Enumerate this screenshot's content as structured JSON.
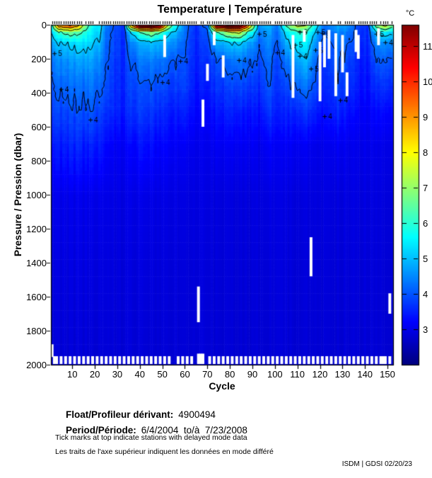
{
  "title": "Temperature | Température",
  "footer": {
    "float_label": "Float/Profileur dérivant:",
    "float_value": "4900494",
    "period_label": "Period/Période:",
    "period_value": "6/4/2004  to/à  7/23/2008",
    "note_en": "Tick marks at top indicate stations with delayed mode data",
    "note_fr": "Les traits de l'axe supérieur indiquent les données en mode différé",
    "credit": "ISDM | GDSI 02/20/23"
  },
  "chart_data": {
    "type": "heatmap",
    "title": "Temperature | Température",
    "xlabel": "Cycle",
    "ylabel": "Pressure / Pression (dbar)",
    "x_range": [
      1,
      152
    ],
    "y_range": [
      0,
      2000
    ],
    "x_ticks": [
      10,
      20,
      30,
      40,
      50,
      60,
      70,
      80,
      90,
      100,
      110,
      120,
      130,
      140,
      150
    ],
    "y_ticks": [
      0,
      200,
      400,
      600,
      800,
      1000,
      1200,
      1400,
      1600,
      1800,
      2000
    ],
    "colorbar": {
      "unit": "°C",
      "ticks": [
        3,
        4,
        5,
        6,
        7,
        8,
        9,
        10,
        11
      ],
      "domain": [
        2.0,
        11.6
      ],
      "colormap": "jet"
    },
    "contour_levels": [
      4,
      5,
      6,
      7,
      8,
      9,
      10,
      11
    ],
    "pressure_nodes": [
      0,
      40,
      100,
      200,
      350,
      500,
      700,
      1000,
      1400,
      2000
    ],
    "profiles": [
      {
        "cycle": 1,
        "temps": [
          6.0,
          5.2,
          4.8,
          4.3,
          4.0,
          3.8,
          3.4,
          3.0,
          2.9,
          2.8
        ]
      },
      {
        "cycle": 4,
        "temps": [
          8.8,
          6.0,
          5.0,
          4.5,
          4.1,
          3.8,
          3.4,
          3.0,
          2.9,
          2.8
        ]
      },
      {
        "cycle": 9,
        "temps": [
          9.3,
          6.5,
          5.2,
          4.6,
          4.2,
          3.9,
          3.5,
          3.0,
          2.9,
          2.8
        ]
      },
      {
        "cycle": 13,
        "temps": [
          8.2,
          6.2,
          5.3,
          4.7,
          4.2,
          3.9,
          3.5,
          3.0,
          2.9,
          2.8
        ]
      },
      {
        "cycle": 16,
        "temps": [
          6.5,
          5.8,
          5.3,
          4.7,
          4.2,
          3.9,
          3.4,
          3.0,
          2.9,
          2.8
        ]
      },
      {
        "cycle": 19,
        "temps": [
          5.6,
          5.4,
          5.1,
          4.7,
          4.3,
          4.0,
          3.5,
          3.0,
          2.9,
          2.8
        ]
      },
      {
        "cycle": 22,
        "temps": [
          5.4,
          5.2,
          4.9,
          4.5,
          4.1,
          3.8,
          3.4,
          2.98,
          2.88,
          2.8
        ]
      },
      {
        "cycle": 25,
        "temps": [
          4.3,
          4.2,
          4.1,
          4.0,
          3.9,
          3.6,
          3.2,
          2.95,
          2.87,
          2.8
        ]
      },
      {
        "cycle": 29,
        "temps": [
          3.9,
          3.85,
          3.8,
          3.7,
          3.6,
          3.5,
          3.1,
          2.93,
          2.86,
          2.8
        ]
      },
      {
        "cycle": 33,
        "temps": [
          3.7,
          3.65,
          3.6,
          3.55,
          3.5,
          3.4,
          3.1,
          2.92,
          2.85,
          2.8
        ]
      },
      {
        "cycle": 36,
        "temps": [
          8.0,
          5.0,
          4.4,
          4.0,
          3.8,
          3.6,
          3.2,
          2.95,
          2.86,
          2.8
        ]
      },
      {
        "cycle": 40,
        "temps": [
          11.0,
          6.0,
          4.8,
          4.3,
          3.9,
          3.7,
          3.3,
          2.97,
          2.88,
          2.8
        ]
      },
      {
        "cycle": 45,
        "temps": [
          11.5,
          6.8,
          5.0,
          4.4,
          4.0,
          3.7,
          3.3,
          2.97,
          2.88,
          2.8
        ]
      },
      {
        "cycle": 49,
        "temps": [
          10.5,
          6.2,
          4.9,
          4.3,
          3.9,
          3.6,
          3.2,
          2.95,
          2.87,
          2.8
        ]
      },
      {
        "cycle": 52,
        "temps": [
          7.5,
          5.4,
          4.7,
          4.2,
          3.8,
          3.5,
          3.2,
          2.94,
          2.86,
          2.8
        ]
      },
      {
        "cycle": 55,
        "temps": [
          5.8,
          5.0,
          4.5,
          4.0,
          3.7,
          3.4,
          3.1,
          2.93,
          2.85,
          2.8
        ]
      },
      {
        "cycle": 60,
        "temps": [
          4.3,
          4.2,
          4.1,
          3.95,
          3.8,
          3.5,
          3.1,
          2.92,
          2.85,
          2.8
        ]
      },
      {
        "cycle": 65,
        "temps": [
          3.6,
          3.55,
          3.5,
          3.45,
          3.35,
          3.2,
          3.0,
          2.9,
          2.84,
          2.8
        ]
      },
      {
        "cycle": 70,
        "temps": [
          4.2,
          4.0,
          3.8,
          3.6,
          3.4,
          3.2,
          3.0,
          2.9,
          2.84,
          2.8
        ]
      },
      {
        "cycle": 74,
        "temps": [
          10.5,
          6.0,
          4.8,
          4.0,
          3.7,
          3.4,
          3.1,
          2.9,
          2.85,
          2.8
        ]
      },
      {
        "cycle": 79,
        "temps": [
          11.5,
          7.0,
          5.0,
          4.2,
          3.8,
          3.5,
          3.1,
          2.9,
          2.85,
          2.8
        ]
      },
      {
        "cycle": 84,
        "temps": [
          11.5,
          7.5,
          5.2,
          4.4,
          3.9,
          3.5,
          3.1,
          2.9,
          2.85,
          2.8
        ]
      },
      {
        "cycle": 88,
        "temps": [
          9.0,
          6.0,
          4.8,
          4.2,
          3.8,
          3.4,
          3.1,
          2.9,
          2.85,
          2.8
        ]
      },
      {
        "cycle": 90,
        "temps": [
          7.0,
          5.5,
          4.6,
          4.1,
          3.7,
          3.4,
          3.1,
          2.9,
          2.85,
          2.8
        ]
      },
      {
        "cycle": 93,
        "temps": [
          4.6,
          4.3,
          4.1,
          3.9,
          3.6,
          3.3,
          3.0,
          2.9,
          2.84,
          2.8
        ]
      },
      {
        "cycle": 97,
        "temps": [
          5.0,
          4.8,
          4.6,
          4.3,
          4.1,
          3.8,
          3.2,
          2.95,
          2.87,
          2.8
        ]
      },
      {
        "cycle": 101,
        "temps": [
          4.2,
          4.05,
          3.9,
          3.7,
          3.55,
          3.35,
          3.05,
          2.9,
          2.85,
          2.8
        ]
      },
      {
        "cycle": 106,
        "temps": [
          6.5,
          5.5,
          5.0,
          4.4,
          3.9,
          3.5,
          3.1,
          2.9,
          2.85,
          2.8
        ]
      },
      {
        "cycle": 110,
        "temps": [
          7.5,
          6.0,
          5.5,
          4.8,
          4.2,
          3.6,
          3.1,
          2.9,
          2.85,
          2.8
        ]
      },
      {
        "cycle": 114,
        "temps": [
          7.0,
          6.0,
          5.5,
          5.0,
          4.3,
          3.7,
          3.1,
          2.9,
          2.85,
          2.8
        ]
      },
      {
        "cycle": 118,
        "temps": [
          5.5,
          5.0,
          4.6,
          4.2,
          3.9,
          3.5,
          3.0,
          2.9,
          2.85,
          2.8
        ]
      },
      {
        "cycle": 122,
        "temps": [
          4.2,
          4.0,
          3.8,
          3.6,
          3.5,
          3.3,
          3.0,
          2.9,
          2.84,
          2.8
        ]
      },
      {
        "cycle": 128,
        "temps": [
          4.8,
          4.5,
          4.3,
          4.1,
          3.9,
          3.6,
          3.1,
          2.9,
          2.85,
          2.8
        ]
      },
      {
        "cycle": 133,
        "temps": [
          4.5,
          4.2,
          4.0,
          3.8,
          3.6,
          3.3,
          3.0,
          2.9,
          2.84,
          2.8
        ]
      },
      {
        "cycle": 137,
        "temps": [
          3.8,
          3.7,
          3.6,
          3.5,
          3.4,
          3.2,
          3.0,
          2.9,
          2.84,
          2.8
        ]
      },
      {
        "cycle": 141,
        "temps": [
          3.6,
          3.55,
          3.5,
          3.4,
          3.3,
          3.1,
          3.0,
          2.89,
          2.84,
          2.8
        ]
      },
      {
        "cycle": 145,
        "temps": [
          6.5,
          5.0,
          4.4,
          4.0,
          3.6,
          3.3,
          3.0,
          2.9,
          2.84,
          2.8
        ]
      },
      {
        "cycle": 149,
        "temps": [
          7.5,
          5.5,
          4.6,
          4.1,
          3.7,
          3.3,
          3.0,
          2.9,
          2.84,
          2.8
        ]
      },
      {
        "cycle": 152,
        "temps": [
          6.5,
          5.2,
          4.5,
          4.0,
          3.6,
          3.3,
          3.0,
          2.9,
          2.84,
          2.8
        ]
      }
    ],
    "contour_labels": [
      {
        "t": "5",
        "c": 4,
        "p": 170
      },
      {
        "t": "4",
        "c": 7,
        "p": 380
      },
      {
        "t": "4",
        "c": 20,
        "p": 560
      },
      {
        "t": "4",
        "c": 52,
        "p": 340
      },
      {
        "t": "4",
        "c": 60,
        "p": 215
      },
      {
        "t": "4",
        "c": 86,
        "p": 210
      },
      {
        "t": "5",
        "c": 95,
        "p": 55
      },
      {
        "t": "4",
        "c": 103,
        "p": 165
      },
      {
        "t": "5",
        "c": 118,
        "p": 260
      },
      {
        "t": "5",
        "c": 120,
        "p": 150
      },
      {
        "t": "5",
        "c": 121,
        "p": 45
      },
      {
        "t": "6",
        "c": 123,
        "p": 50
      },
      {
        "t": "4",
        "c": 131,
        "p": 445
      },
      {
        "t": "4",
        "c": 124,
        "p": 540
      },
      {
        "t": "4",
        "c": 151,
        "p": 105
      },
      {
        "t": "5",
        "c": 147,
        "p": 55
      },
      {
        "t": "6",
        "c": 113,
        "p": 45
      },
      {
        "t": "5",
        "c": 111,
        "p": 120
      },
      {
        "t": "4",
        "c": 113,
        "p": 185
      }
    ],
    "missing_segments": [
      {
        "c": 1,
        "p0": 1880,
        "p1": 1955
      },
      {
        "c": 51,
        "p0": 60,
        "p1": 190
      },
      {
        "c": 66,
        "p0": 1540,
        "p1": 1750
      },
      {
        "c": 68,
        "p0": 440,
        "p1": 600
      },
      {
        "c": 70,
        "p0": 230,
        "p1": 330
      },
      {
        "c": 73,
        "p0": 40,
        "p1": 120
      },
      {
        "c": 77,
        "p0": 180,
        "p1": 310
      },
      {
        "c": 108,
        "p0": 60,
        "p1": 430
      },
      {
        "c": 113,
        "p0": 30,
        "p1": 100
      },
      {
        "c": 116,
        "p0": 1250,
        "p1": 1480
      },
      {
        "c": 120,
        "p0": 100,
        "p1": 450
      },
      {
        "c": 122,
        "p0": 60,
        "p1": 250
      },
      {
        "c": 124,
        "p0": 30,
        "p1": 200
      },
      {
        "c": 127,
        "p0": 50,
        "p1": 420
      },
      {
        "c": 130,
        "p0": 60,
        "p1": 280
      },
      {
        "c": 132,
        "p0": 280,
        "p1": 420
      },
      {
        "c": 136,
        "p0": 30,
        "p1": 160
      },
      {
        "c": 137,
        "p0": 60,
        "p1": 200
      },
      {
        "c": 146,
        "p0": 20,
        "p1": 120
      },
      {
        "c": 151,
        "p0": 1580,
        "p1": 1700
      }
    ],
    "bottom_gap_cycles": [
      2,
      3,
      5,
      7,
      9,
      11,
      13,
      15,
      17,
      19,
      21,
      23,
      25,
      27,
      29,
      31,
      33,
      35,
      37,
      39,
      41,
      43,
      45,
      47,
      49,
      51,
      53,
      57,
      59,
      61,
      63,
      66,
      67,
      68,
      71,
      73,
      75,
      77,
      79,
      81,
      83,
      85,
      87,
      89,
      91,
      93,
      95,
      97,
      99,
      101,
      103,
      105,
      107,
      109,
      111,
      113,
      115,
      117,
      119,
      121,
      123,
      125,
      127,
      129,
      131,
      133,
      135,
      137,
      139,
      141,
      143,
      145,
      147,
      148,
      149,
      151
    ],
    "delayed_tick_gaps": [
      15,
      20,
      21,
      55,
      66,
      69,
      99,
      108,
      119,
      120,
      122,
      124,
      126,
      127,
      130,
      136,
      146,
      151
    ]
  }
}
